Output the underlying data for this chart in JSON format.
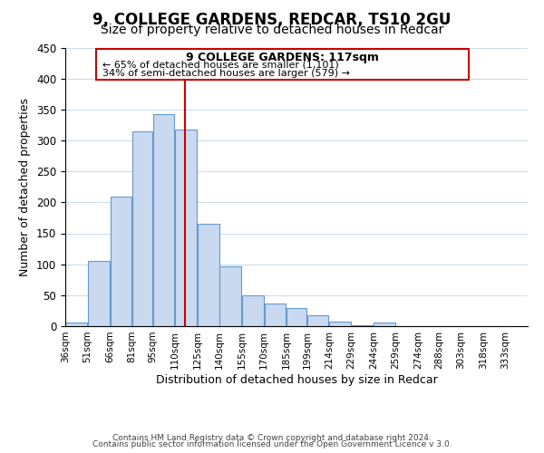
{
  "title1": "9, COLLEGE GARDENS, REDCAR, TS10 2GU",
  "title2": "Size of property relative to detached houses in Redcar",
  "xlabel": "Distribution of detached houses by size in Redcar",
  "ylabel": "Number of detached properties",
  "bar_left_edges": [
    36,
    51,
    66,
    81,
    95,
    110,
    125,
    140,
    155,
    170,
    185,
    199,
    214,
    229,
    244,
    259,
    274,
    288,
    303,
    318
  ],
  "bar_widths": [
    15,
    15,
    15,
    14,
    15,
    15,
    15,
    15,
    15,
    15,
    14,
    15,
    15,
    15,
    15,
    15,
    14,
    15,
    15,
    15
  ],
  "bar_heights": [
    6,
    105,
    210,
    315,
    343,
    318,
    165,
    97,
    50,
    36,
    29,
    17,
    8,
    1,
    6,
    0,
    0,
    0,
    0,
    0
  ],
  "tick_labels": [
    "36sqm",
    "51sqm",
    "66sqm",
    "81sqm",
    "95sqm",
    "110sqm",
    "125sqm",
    "140sqm",
    "155sqm",
    "170sqm",
    "185sqm",
    "199sqm",
    "214sqm",
    "229sqm",
    "244sqm",
    "259sqm",
    "274sqm",
    "288sqm",
    "303sqm",
    "318sqm",
    "333sqm"
  ],
  "bar_color": "#c8d9f0",
  "bar_edge_color": "#6699cc",
  "grid_color": "#ccddee",
  "vline_x": 117,
  "vline_color": "#cc0000",
  "annotation_title": "9 COLLEGE GARDENS: 117sqm",
  "annotation_line1": "← 65% of detached houses are smaller (1,101)",
  "annotation_line2": "34% of semi-detached houses are larger (579) →",
  "annotation_box_color": "#ffffff",
  "annotation_box_edge": "#cc0000",
  "ylim": [
    0,
    450
  ],
  "xlim": [
    36,
    348
  ],
  "footer1": "Contains HM Land Registry data © Crown copyright and database right 2024.",
  "footer2": "Contains public sector information licensed under the Open Government Licence v 3.0.",
  "title1_fontsize": 12,
  "title2_fontsize": 10,
  "tick_fontsize": 7.5,
  "ylabel_fontsize": 9,
  "xlabel_fontsize": 9,
  "footer_fontsize": 6.5
}
